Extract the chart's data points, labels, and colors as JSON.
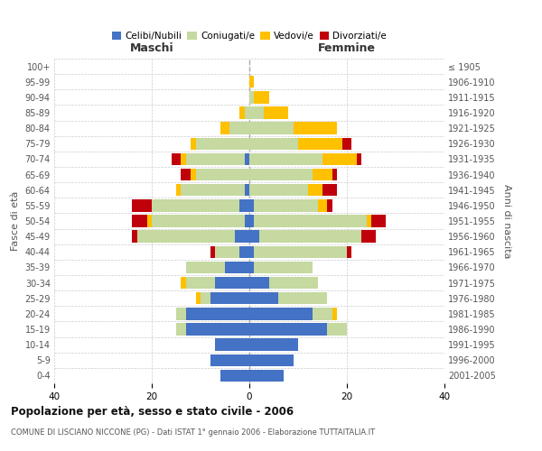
{
  "age_groups": [
    "0-4",
    "5-9",
    "10-14",
    "15-19",
    "20-24",
    "25-29",
    "30-34",
    "35-39",
    "40-44",
    "45-49",
    "50-54",
    "55-59",
    "60-64",
    "65-69",
    "70-74",
    "75-79",
    "80-84",
    "85-89",
    "90-94",
    "95-99",
    "100+"
  ],
  "birth_years": [
    "2001-2005",
    "1996-2000",
    "1991-1995",
    "1986-1990",
    "1981-1985",
    "1976-1980",
    "1971-1975",
    "1966-1970",
    "1961-1965",
    "1956-1960",
    "1951-1955",
    "1946-1950",
    "1941-1945",
    "1936-1940",
    "1931-1935",
    "1926-1930",
    "1921-1925",
    "1916-1920",
    "1911-1915",
    "1906-1910",
    "≤ 1905"
  ],
  "males": {
    "celibi": [
      6,
      8,
      7,
      13,
      13,
      8,
      7,
      5,
      2,
      3,
      1,
      2,
      1,
      0,
      1,
      0,
      0,
      0,
      0,
      0,
      0
    ],
    "coniugati": [
      0,
      0,
      0,
      2,
      2,
      2,
      6,
      8,
      5,
      20,
      19,
      18,
      13,
      11,
      12,
      11,
      4,
      1,
      0,
      0,
      0
    ],
    "vedovi": [
      0,
      0,
      0,
      0,
      0,
      1,
      1,
      0,
      0,
      0,
      1,
      0,
      1,
      1,
      1,
      1,
      2,
      1,
      0,
      0,
      0
    ],
    "divorziati": [
      0,
      0,
      0,
      0,
      0,
      0,
      0,
      0,
      1,
      1,
      3,
      4,
      0,
      2,
      2,
      0,
      0,
      0,
      0,
      0,
      0
    ]
  },
  "females": {
    "nubili": [
      7,
      9,
      10,
      16,
      13,
      6,
      4,
      1,
      1,
      2,
      1,
      1,
      0,
      0,
      0,
      0,
      0,
      0,
      0,
      0,
      0
    ],
    "coniugate": [
      0,
      0,
      0,
      4,
      4,
      10,
      10,
      12,
      19,
      21,
      23,
      13,
      12,
      13,
      15,
      10,
      9,
      3,
      1,
      0,
      0
    ],
    "vedove": [
      0,
      0,
      0,
      0,
      1,
      0,
      0,
      0,
      0,
      0,
      1,
      2,
      3,
      4,
      7,
      9,
      9,
      5,
      3,
      1,
      0
    ],
    "divorziate": [
      0,
      0,
      0,
      0,
      0,
      0,
      0,
      0,
      1,
      3,
      3,
      1,
      3,
      1,
      1,
      2,
      0,
      0,
      0,
      0,
      0
    ]
  },
  "colors": {
    "celibi": "#4472c4",
    "coniugati": "#c5d9a0",
    "vedovi": "#ffc000",
    "divorziati": "#c0000b"
  },
  "xlim": 40,
  "title": "Popolazione per età, sesso e stato civile - 2006",
  "subtitle": "COMUNE DI LISCIANO NICCONE (PG) - Dati ISTAT 1° gennaio 2006 - Elaborazione TUTTAITALIA.IT",
  "ylabel_left": "Fasce di età",
  "ylabel_right": "Anni di nascita",
  "xlabel_left": "Maschi",
  "xlabel_right": "Femmine",
  "bg_color": "#ffffff",
  "grid_color": "#cccccc"
}
